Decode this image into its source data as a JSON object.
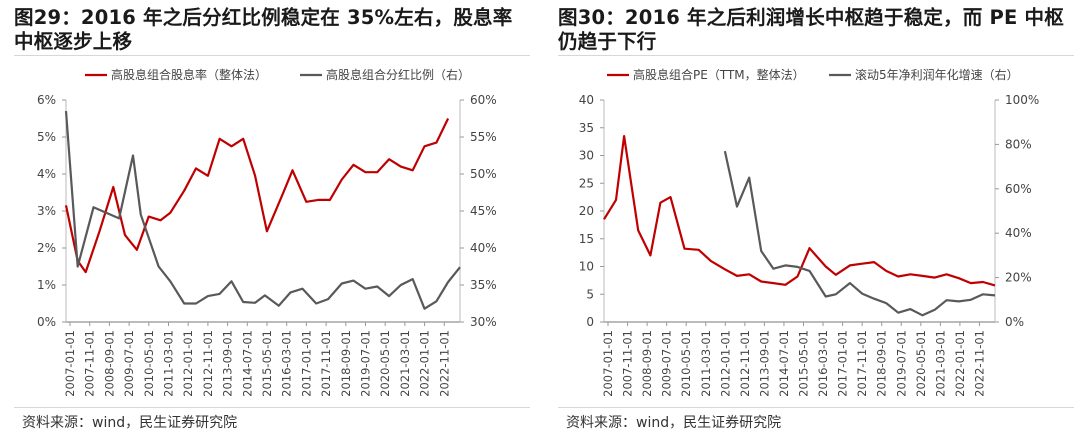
{
  "charts": [
    {
      "figure_title": "图29：2016 年之后分红比例稳定在 35%左右，股息率中枢逐步上移",
      "source": "资料来源：wind，民生证券研究院",
      "chart_data": {
        "type": "line",
        "x": [
          "2007-01-01",
          "2007-11-01",
          "2008-09-01",
          "2009-07-01",
          "2010-05-01",
          "2011-03-01",
          "2012-01-01",
          "2012-11-01",
          "2013-09-01",
          "2014-07-01",
          "2015-05-01",
          "2016-03-01",
          "2017-01-01",
          "2017-11-01",
          "2018-09-01",
          "2019-07-01",
          "2020-05-01",
          "2021-03-01",
          "2022-01-01",
          "2022-11-01"
        ],
        "x_tick_labels": [
          "2007-01-01",
          "2007-11-01",
          "2008-09-01",
          "2009-07-01",
          "2010-05-01",
          "2011-03-01",
          "2012-01-01",
          "2012-11-01",
          "2013-09-01",
          "2014-07-01",
          "2015-05-01",
          "2016-03-01",
          "2017-01-01",
          "2017-11-01",
          "2018-09-01",
          "2019-07-01",
          "2020-05-01",
          "2021-03-01",
          "2022-01-01",
          "2022-11-01"
        ],
        "series": [
          {
            "name": "高股息组合股息率（整体法）",
            "axis": "left",
            "color": "#c00000",
            "points": [
              [
                "2007-01-01",
                3.15
              ],
              [
                "2007-07-01",
                1.65
              ],
              [
                "2007-11-01",
                1.35
              ],
              [
                "2008-06-01",
                2.45
              ],
              [
                "2009-01-01",
                3.65
              ],
              [
                "2009-07-01",
                2.35
              ],
              [
                "2010-01-01",
                1.95
              ],
              [
                "2010-07-01",
                2.85
              ],
              [
                "2011-01-01",
                2.75
              ],
              [
                "2011-06-01",
                2.95
              ],
              [
                "2012-01-01",
                3.55
              ],
              [
                "2012-07-01",
                4.15
              ],
              [
                "2013-01-01",
                3.95
              ],
              [
                "2013-07-01",
                4.95
              ],
              [
                "2014-01-01",
                4.75
              ],
              [
                "2014-07-01",
                4.95
              ],
              [
                "2015-01-01",
                3.95
              ],
              [
                "2015-07-01",
                2.45
              ],
              [
                "2016-03-01",
                3.45
              ],
              [
                "2016-08-01",
                4.1
              ],
              [
                "2017-03-01",
                3.25
              ],
              [
                "2017-09-01",
                3.3
              ],
              [
                "2018-03-01",
                3.3
              ],
              [
                "2018-09-01",
                3.85
              ],
              [
                "2019-03-01",
                4.25
              ],
              [
                "2019-09-01",
                4.05
              ],
              [
                "2020-03-01",
                4.05
              ],
              [
                "2020-09-01",
                4.4
              ],
              [
                "2021-03-01",
                4.2
              ],
              [
                "2021-09-01",
                4.1
              ],
              [
                "2022-03-01",
                4.75
              ],
              [
                "2022-09-01",
                4.85
              ],
              [
                "2023-03-01",
                5.5
              ]
            ]
          },
          {
            "name": "高股息组合分红比例（右）",
            "axis": "right",
            "color": "#595959",
            "points": [
              [
                "2007-01-01",
                58.5
              ],
              [
                "2007-07-01",
                37.5
              ],
              [
                "2008-03-01",
                45.5
              ],
              [
                "2009-04-01",
                44.0
              ],
              [
                "2009-11-01",
                52.5
              ],
              [
                "2010-03-01",
                44.5
              ],
              [
                "2010-12-01",
                37.5
              ],
              [
                "2011-06-01",
                35.5
              ],
              [
                "2012-01-01",
                32.5
              ],
              [
                "2012-07-01",
                32.5
              ],
              [
                "2013-01-01",
                33.5
              ],
              [
                "2013-07-01",
                33.8
              ],
              [
                "2014-01-01",
                35.5
              ],
              [
                "2014-07-01",
                32.7
              ],
              [
                "2015-01-01",
                32.6
              ],
              [
                "2015-06-01",
                33.6
              ],
              [
                "2016-01-01",
                32.2
              ],
              [
                "2016-07-01",
                34.0
              ],
              [
                "2017-01-01",
                34.5
              ],
              [
                "2017-08-01",
                32.5
              ],
              [
                "2018-02-01",
                33.1
              ],
              [
                "2018-09-01",
                35.2
              ],
              [
                "2019-03-01",
                35.6
              ],
              [
                "2019-09-01",
                34.5
              ],
              [
                "2020-03-01",
                34.8
              ],
              [
                "2020-09-01",
                33.5
              ],
              [
                "2021-03-01",
                35.0
              ],
              [
                "2021-09-01",
                35.8
              ],
              [
                "2022-03-01",
                31.8
              ],
              [
                "2022-09-01",
                32.8
              ],
              [
                "2023-03-01",
                35.4
              ],
              [
                "2023-09-01",
                37.4
              ]
            ]
          }
        ],
        "y_left": {
          "ticks": [
            0,
            1,
            2,
            3,
            4,
            5,
            6
          ],
          "tick_labels": [
            "0%",
            "1%",
            "2%",
            "3%",
            "4%",
            "5%",
            "6%"
          ],
          "range": [
            0,
            6
          ]
        },
        "y_right": {
          "ticks": [
            30,
            35,
            40,
            45,
            50,
            55,
            60
          ],
          "tick_labels": [
            "30%",
            "35%",
            "40%",
            "45%",
            "50%",
            "55%",
            "60%"
          ],
          "range": [
            30,
            60
          ]
        },
        "x_range": [
          "2007-01-01",
          "2023-09-01"
        ],
        "legend_position": "top",
        "grid": false
      }
    },
    {
      "figure_title": "图30：2016 年之后利润增长中枢趋于稳定，而 PE 中枢仍趋于下行",
      "source": "资料来源：wind，民生证券研究院",
      "chart_data": {
        "type": "line",
        "x_tick_labels": [
          "2007-01-01",
          "2007-11-01",
          "2008-09-01",
          "2009-07-01",
          "2010-05-01",
          "2011-03-01",
          "2012-01-01",
          "2012-11-01",
          "2013-09-01",
          "2014-07-01",
          "2015-05-01",
          "2016-03-01",
          "2017-01-01",
          "2017-11-01",
          "2018-09-01",
          "2019-07-01",
          "2020-05-01",
          "2021-03-01",
          "2022-01-01",
          "2022-11-01"
        ],
        "series": [
          {
            "name": "高股息组合PE（TTM，整体法）",
            "axis": "left",
            "color": "#c00000",
            "points": [
              [
                "2007-01-01",
                18.5
              ],
              [
                "2007-07-01",
                22
              ],
              [
                "2007-11-01",
                33.5
              ],
              [
                "2008-06-01",
                16.5
              ],
              [
                "2008-12-01",
                12
              ],
              [
                "2009-05-01",
                21.5
              ],
              [
                "2009-10-01",
                22.5
              ],
              [
                "2010-05-01",
                13.2
              ],
              [
                "2010-12-01",
                13
              ],
              [
                "2011-06-01",
                11
              ],
              [
                "2012-01-01",
                9.5
              ],
              [
                "2012-07-01",
                8.3
              ],
              [
                "2013-01-01",
                8.6
              ],
              [
                "2013-07-01",
                7.3
              ],
              [
                "2014-01-01",
                7
              ],
              [
                "2014-07-01",
                6.7
              ],
              [
                "2015-01-01",
                8.2
              ],
              [
                "2015-07-01",
                13.3
              ],
              [
                "2016-03-01",
                10
              ],
              [
                "2016-08-01",
                8.5
              ],
              [
                "2017-03-01",
                10.2
              ],
              [
                "2017-09-01",
                10.5
              ],
              [
                "2018-03-01",
                10.8
              ],
              [
                "2018-09-01",
                9.2
              ],
              [
                "2019-03-01",
                8.2
              ],
              [
                "2019-09-01",
                8.6
              ],
              [
                "2020-03-01",
                8.3
              ],
              [
                "2020-09-01",
                8
              ],
              [
                "2021-03-01",
                8.6
              ],
              [
                "2021-09-01",
                7.9
              ],
              [
                "2022-03-01",
                7
              ],
              [
                "2022-09-01",
                7.2
              ],
              [
                "2023-03-01",
                6.6
              ]
            ]
          },
          {
            "name": "滚动5年净利润年化增速（右）",
            "axis": "right",
            "color": "#595959",
            "points": [
              [
                "2012-01-01",
                77
              ],
              [
                "2012-07-01",
                52
              ],
              [
                "2013-01-01",
                65
              ],
              [
                "2013-07-01",
                32
              ],
              [
                "2014-01-01",
                24
              ],
              [
                "2014-07-01",
                25.5
              ],
              [
                "2015-01-01",
                24.8
              ],
              [
                "2015-07-01",
                23
              ],
              [
                "2016-03-01",
                11.5
              ],
              [
                "2016-08-01",
                12.5
              ],
              [
                "2017-03-01",
                17.5
              ],
              [
                "2017-09-01",
                12.8
              ],
              [
                "2018-03-01",
                10.5
              ],
              [
                "2018-09-01",
                8.5
              ],
              [
                "2019-03-01",
                4.2
              ],
              [
                "2019-09-01",
                5.8
              ],
              [
                "2020-03-01",
                3
              ],
              [
                "2020-09-01",
                5.5
              ],
              [
                "2021-03-01",
                9.8
              ],
              [
                "2021-09-01",
                9.3
              ],
              [
                "2022-03-01",
                10
              ],
              [
                "2022-09-01",
                12.5
              ],
              [
                "2023-03-01",
                12
              ]
            ]
          }
        ],
        "y_left": {
          "ticks": [
            0,
            5,
            10,
            15,
            20,
            25,
            30,
            35,
            40
          ],
          "tick_labels": [
            "0",
            "5",
            "10",
            "15",
            "20",
            "25",
            "30",
            "35",
            "40"
          ],
          "range": [
            0,
            40
          ]
        },
        "y_right": {
          "ticks": [
            0,
            20,
            40,
            60,
            80,
            100
          ],
          "tick_labels": [
            "0%",
            "20%",
            "40%",
            "60%",
            "80%",
            "100%"
          ],
          "range": [
            0,
            100
          ]
        },
        "x_range": [
          "2007-01-01",
          "2023-03-01"
        ],
        "legend_position": "top",
        "grid": false
      }
    }
  ]
}
